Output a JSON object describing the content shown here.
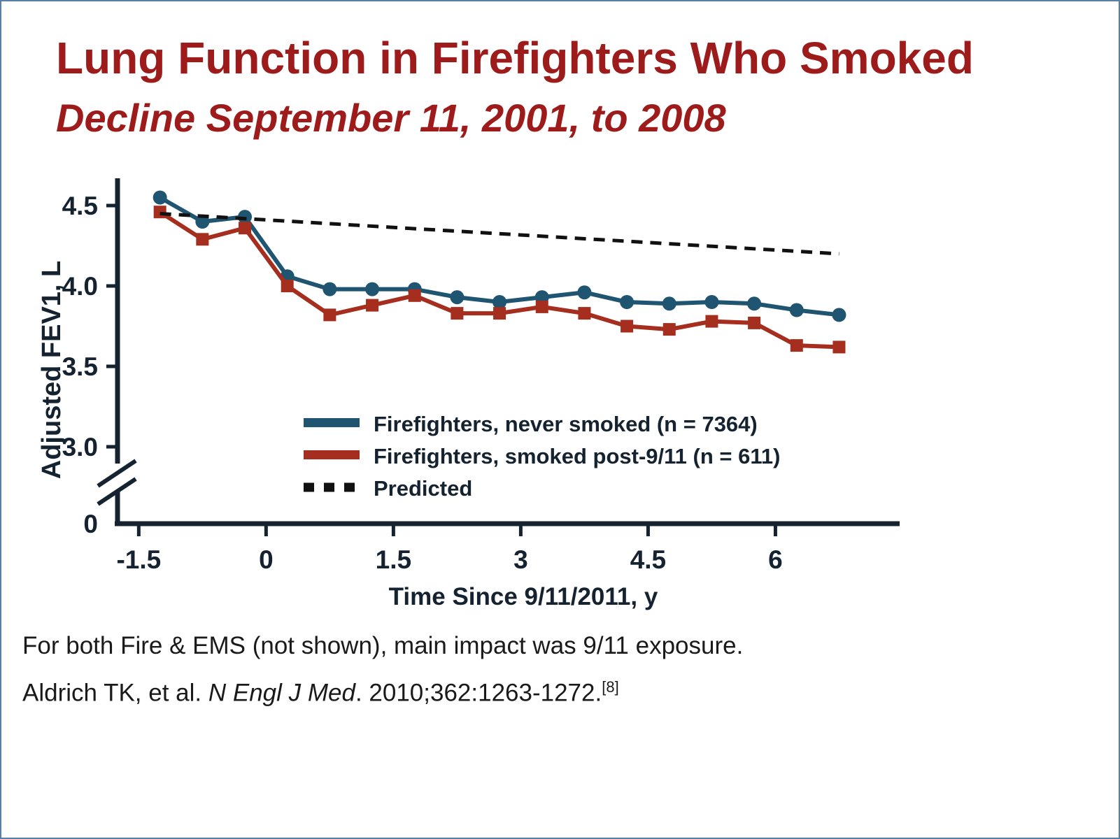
{
  "slide": {
    "title": "Lung Function in Firefighters Who Smoked",
    "subtitle": "Decline September 11, 2001, to 2008",
    "accent_color": "#9E1B1B",
    "footnote": "For both Fire & EMS (not shown), main impact was 9/11 exposure.",
    "citation": {
      "prefix": "Aldrich TK, et al. ",
      "journal": "N Engl J Med",
      "suffix": ". 2010;362:1263-1272.",
      "reference_marker": "[8]"
    }
  },
  "chart_data": {
    "type": "line",
    "title": "",
    "xlabel": "Time Since 9/11/2011, y",
    "ylabel": "Adjusted FEV1, L",
    "xlim": [
      -1.75,
      7.15
    ],
    "x_ticks": [
      -1.5,
      0,
      1.5,
      3,
      4.5,
      6
    ],
    "x_tick_labels": [
      "-1.5",
      "0",
      "1.5",
      "3",
      "4.5",
      "6"
    ],
    "y_ticks": [
      3.0,
      3.5,
      4.0,
      4.5
    ],
    "y_tick_labels": [
      "3.0",
      "3.5",
      "4.0",
      "4.5"
    ],
    "y_zero_label": "0",
    "y_axis_break": true,
    "grid": false,
    "legend_position": "inside-bottom-center",
    "ink_color": "#15222F",
    "series": [
      {
        "name": "Firefighters, never smoked (n = 7364)",
        "color": "#1F5570",
        "marker": "circle",
        "style": "solid",
        "x": [
          -1.25,
          -0.75,
          -0.25,
          0.25,
          0.75,
          1.25,
          1.75,
          2.25,
          2.75,
          3.25,
          3.75,
          4.25,
          4.75,
          5.25,
          5.75,
          6.25,
          6.75
        ],
        "y": [
          4.55,
          4.4,
          4.43,
          4.06,
          3.98,
          3.98,
          3.98,
          3.93,
          3.9,
          3.93,
          3.96,
          3.9,
          3.89,
          3.9,
          3.89,
          3.85,
          3.82
        ]
      },
      {
        "name": "Firefighters, smoked post-9/11 (n = 611)",
        "color": "#A52E1E",
        "marker": "square",
        "style": "solid",
        "x": [
          -1.25,
          -0.75,
          -0.25,
          0.25,
          0.75,
          1.25,
          1.75,
          2.25,
          2.75,
          3.25,
          3.75,
          4.25,
          4.75,
          5.25,
          5.75,
          6.25,
          6.75
        ],
        "y": [
          4.46,
          4.29,
          4.36,
          4.0,
          3.82,
          3.88,
          3.94,
          3.83,
          3.83,
          3.87,
          3.83,
          3.75,
          3.73,
          3.78,
          3.77,
          3.63,
          3.62
        ]
      },
      {
        "name": "Predicted",
        "color": "#111111",
        "marker": "none",
        "style": "dashed",
        "x": [
          -1.25,
          6.75
        ],
        "y": [
          4.45,
          4.2
        ]
      }
    ]
  }
}
